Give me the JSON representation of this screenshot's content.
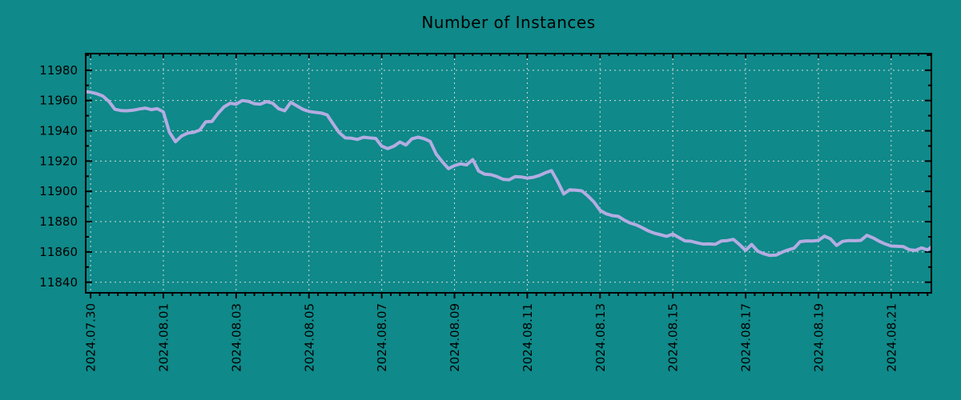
{
  "figure": {
    "background_color": "#0f8989",
    "text_color": "#000000"
  },
  "chart_data": {
    "type": "line",
    "title": "Number of Instances",
    "grid": {
      "show": true,
      "color": "#d9d9d9",
      "style": "dotted"
    },
    "axis_color": "#000000",
    "legend": "none",
    "x_axis": {
      "xlim_days": [
        -0.135,
        23.105
      ],
      "major_tick_positions_days": [
        0,
        2,
        4,
        6,
        8,
        10,
        12,
        14,
        16,
        18,
        20,
        22
      ],
      "tick_labels": [
        "2024.07.30",
        "2024.08.01",
        "2024.08.03",
        "2024.08.05",
        "2024.08.07",
        "2024.08.09",
        "2024.08.11",
        "2024.08.13",
        "2024.08.15",
        "2024.08.17",
        "2024.08.19",
        "2024.08.21"
      ],
      "minor_tick_step_days": 0.25,
      "label_rotation_deg": -90
    },
    "y_axis": {
      "ylim": [
        11833,
        11991
      ],
      "tick_values": [
        11840,
        11860,
        11880,
        11900,
        11920,
        11940,
        11960,
        11980
      ],
      "tick_labels": [
        "11840",
        "11860",
        "11880",
        "11900",
        "11920",
        "11940",
        "11960",
        "11980"
      ],
      "minor_tick_step": 10
    },
    "series": [
      {
        "name": "instances",
        "color": "#b3ace2",
        "line_width": 4,
        "x0_days": -0.1667,
        "dx_days": 0.16667,
        "values": [
          11966,
          11965.5,
          11964.5,
          11963,
          11959.5,
          11954.2,
          11953.4,
          11953.2,
          11953.6,
          11954.4,
          11955,
          11954,
          11954.6,
          11952.5,
          11939,
          11932.8,
          11936.5,
          11938.5,
          11939,
          11940.5,
          11946,
          11946.2,
          11951.5,
          11955.8,
          11958.2,
          11957.6,
          11960,
          11959.5,
          11957.9,
          11957.6,
          11959.3,
          11958.3,
          11954.6,
          11953.2,
          11958.8,
          11956.5,
          11954.2,
          11952.8,
          11952.2,
          11951.8,
          11950.5,
          11944.5,
          11938.8,
          11935.3,
          11935.1,
          11934.3,
          11935.8,
          11935.3,
          11935,
          11929.8,
          11928.3,
          11929.8,
          11932.6,
          11930.6,
          11934.8,
          11935.8,
          11934.8,
          11933,
          11924.5,
          11919.5,
          11915,
          11917,
          11918.2,
          11917.5,
          11921,
          11913.4,
          11911.3,
          11911,
          11909.8,
          11908,
          11907.6,
          11909.8,
          11909.5,
          11908.8,
          11909.3,
          11910.5,
          11912.3,
          11913.7,
          11906.5,
          11898.3,
          11901,
          11900.8,
          11900.3,
          11897,
          11893,
          11887.5,
          11885.2,
          11884,
          11883.5,
          11881,
          11879,
          11877.8,
          11875.9,
          11873.8,
          11872.3,
          11871.3,
          11870.3,
          11871.8,
          11869.5,
          11867.3,
          11867.1,
          11866,
          11865.2,
          11865.3,
          11865,
          11867.2,
          11867.5,
          11868.3,
          11864.8,
          11861,
          11864.9,
          11860.5,
          11858.8,
          11857.7,
          11857.9,
          11859.8,
          11861.3,
          11862.5,
          11866.8,
          11867.3,
          11867.2,
          11867.6,
          11870.4,
          11868.6,
          11864.3,
          11867,
          11867.5,
          11867.4,
          11867.6,
          11871,
          11869.3,
          11867.1,
          11865.3,
          11863.9,
          11863.7,
          11863.5,
          11861.5,
          11861,
          11862.7,
          11861.3,
          11864.3
        ]
      }
    ]
  }
}
